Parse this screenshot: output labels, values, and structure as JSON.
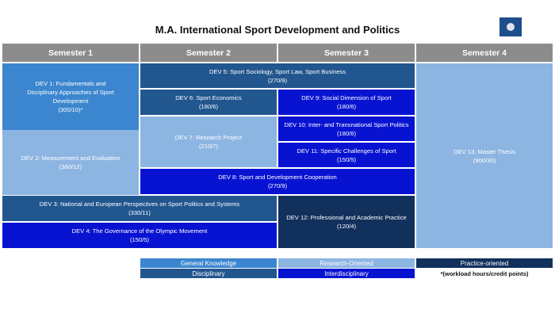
{
  "title": "M.A. International Sport Development and Politics",
  "logo_icon": "university-logo-icon",
  "semesters": [
    "Semester 1",
    "Semester 2",
    "Semester 3",
    "Semester 4"
  ],
  "modules": {
    "dev1": {
      "name": "DEV 1: Fundamentals and Disciplinary Approaches of Sport Development",
      "credits": "(300/10)*"
    },
    "dev2": {
      "name": "DEV 2: Measurement and Evaluation",
      "credits": "(360/12)"
    },
    "dev3": {
      "name": "DEV 3: National and European Perspectives on Sport Politics and Systems",
      "credits": "(330/11)"
    },
    "dev4": {
      "name": "DEV 4: The Governance of the Olympic Movement",
      "credits": "(150/5)"
    },
    "dev5": {
      "name": "DEV 5: Sport Sociology, Sport Law, Sport Business",
      "credits": "(270/9)"
    },
    "dev6": {
      "name": "DEV 6: Sport Economics",
      "credits": "(180/6)"
    },
    "dev7": {
      "name": "DEV 7: Research Project",
      "credits": "(210/7)"
    },
    "dev8": {
      "name": "DEV 8: Sport and Development Cooperation",
      "credits": "(270/9)"
    },
    "dev9": {
      "name": "DEV 9: Social Dimension of Sport",
      "credits": "(180/6)"
    },
    "dev10": {
      "name": "DEV 10: Inter- and Transnational Sport Politics",
      "credits": "(180/6)"
    },
    "dev11": {
      "name": "DEV 11: Specific Challenges of Sport",
      "credits": "(150/5)"
    },
    "dev12": {
      "name": "DEV 12: Professional and Academic Practice",
      "credits": "(120/4)"
    },
    "dev13": {
      "name": "DEV 13: Master Thesis",
      "credits": "(900/30)"
    }
  },
  "legend": {
    "general": "General Knowledge",
    "research": "Research-Oriented",
    "practice": "Practice-oriented",
    "disciplinary": "Disciplinary",
    "interdisciplinary": "Interdisciplinary",
    "note": "*(workload hours/credit points)"
  },
  "colors": {
    "general": "#3b86cf",
    "research": "#8db5e2",
    "practice": "#12305c",
    "disciplinary": "#21568f",
    "interdisciplinary": "#0813d2",
    "header": "#8c8c8c"
  }
}
